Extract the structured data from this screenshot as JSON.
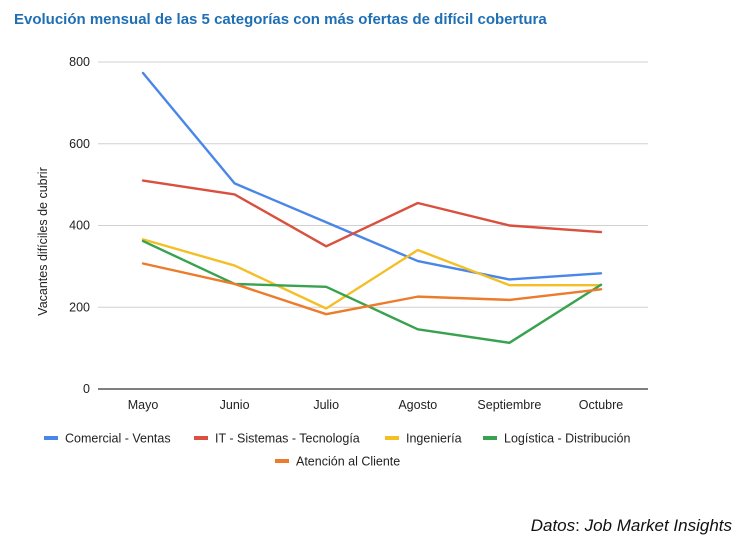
{
  "chart_data": {
    "type": "line",
    "title": "Evolución mensual de las 5 categorías con más ofertas de difícil cobertura",
    "xlabel": "",
    "ylabel": "Vacantes difíciles de cubrir",
    "ylim": [
      0,
      800
    ],
    "yticks": [
      0,
      200,
      400,
      600,
      800
    ],
    "grid": true,
    "legend_position": "bottom",
    "categories": [
      "Mayo",
      "Junio",
      "Julio",
      "Agosto",
      "Septiembre",
      "Octubre"
    ],
    "series": [
      {
        "name": "Comercial - Ventas",
        "color": "#4a86e8",
        "values": [
          773,
          503,
          408,
          313,
          268,
          283
        ]
      },
      {
        "name": "IT - Sistemas - Tecnología",
        "color": "#d9503f",
        "values": [
          510,
          476,
          349,
          455,
          400,
          384
        ]
      },
      {
        "name": "Ingeniería",
        "color": "#f4bf26",
        "values": [
          366,
          302,
          197,
          340,
          254,
          254
        ]
      },
      {
        "name": "Logística - Distribución",
        "color": "#38a24f",
        "values": [
          362,
          257,
          250,
          146,
          113,
          255
        ]
      },
      {
        "name": "Atención al Cliente",
        "color": "#ed7b2c",
        "values": [
          307,
          257,
          183,
          226,
          218,
          244
        ]
      }
    ]
  },
  "footer": {
    "source_label": "Datos",
    "source_value": "Job Market Insights"
  }
}
